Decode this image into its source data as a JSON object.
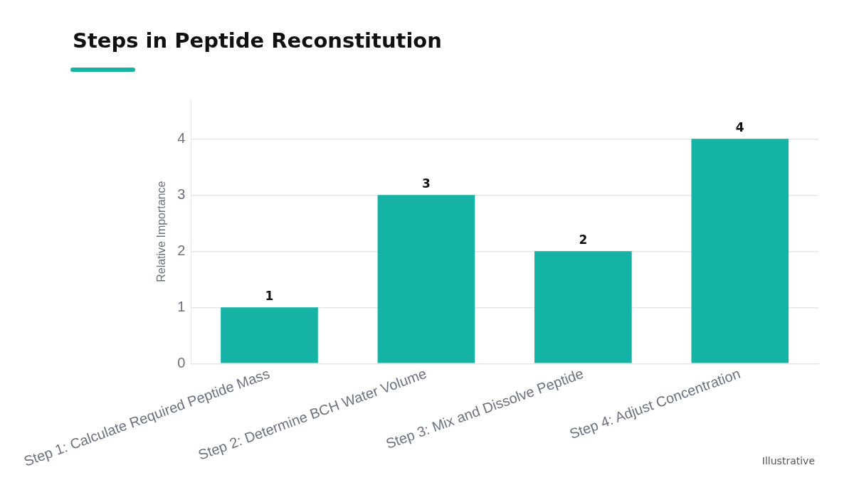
{
  "chart_data": {
    "type": "bar",
    "title": "Steps in Peptide Reconstitution",
    "ylabel": "Relative Importance",
    "categories": [
      "Step 1: Calculate Required Peptide Mass",
      "Step 2: Determine BCH Water Volume",
      "Step 3: Mix and Dissolve Peptide",
      "Step 4: Adjust Concentration"
    ],
    "values": [
      1,
      3,
      2,
      4
    ],
    "color": "#14b3a6",
    "ylim": [
      0,
      4.7
    ],
    "yticks": [
      0,
      1,
      2,
      3,
      4
    ],
    "grid": "y",
    "data_labels": true,
    "legend": false,
    "annotations": [
      "Illustrative"
    ]
  }
}
